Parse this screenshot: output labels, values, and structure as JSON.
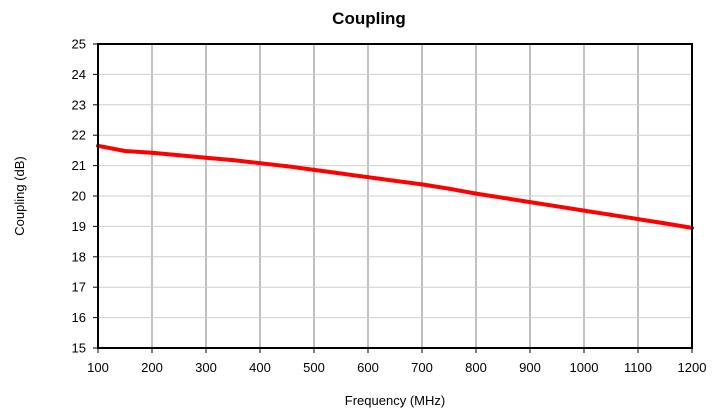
{
  "chart_data": {
    "type": "line",
    "title": "Coupling",
    "xlabel": "Frequency (MHz)",
    "ylabel": "Coupling (dB)",
    "xlim": [
      100,
      1200
    ],
    "ylim": [
      15,
      25
    ],
    "x_ticks": [
      "100",
      "200",
      "300",
      "400",
      "500",
      "600",
      "700",
      "800",
      "900",
      "1000",
      "1100",
      "1200"
    ],
    "y_ticks": [
      "15",
      "16",
      "17",
      "18",
      "19",
      "20",
      "21",
      "22",
      "23",
      "24",
      "25"
    ],
    "grid": {
      "vertical": true,
      "horizontal": true
    },
    "legend": "none",
    "series": [
      {
        "color": "#ff0000",
        "x": [
          100,
          150,
          200,
          250,
          300,
          350,
          400,
          450,
          500,
          550,
          600,
          650,
          700,
          750,
          800,
          850,
          900,
          950,
          1000,
          1050,
          1100,
          1150,
          1200
        ],
        "y": [
          21.65,
          21.48,
          21.42,
          21.34,
          21.26,
          21.18,
          21.08,
          20.98,
          20.86,
          20.74,
          20.62,
          20.5,
          20.38,
          20.24,
          20.08,
          19.94,
          19.8,
          19.66,
          19.52,
          19.38,
          19.24,
          19.1,
          18.95
        ]
      }
    ]
  }
}
